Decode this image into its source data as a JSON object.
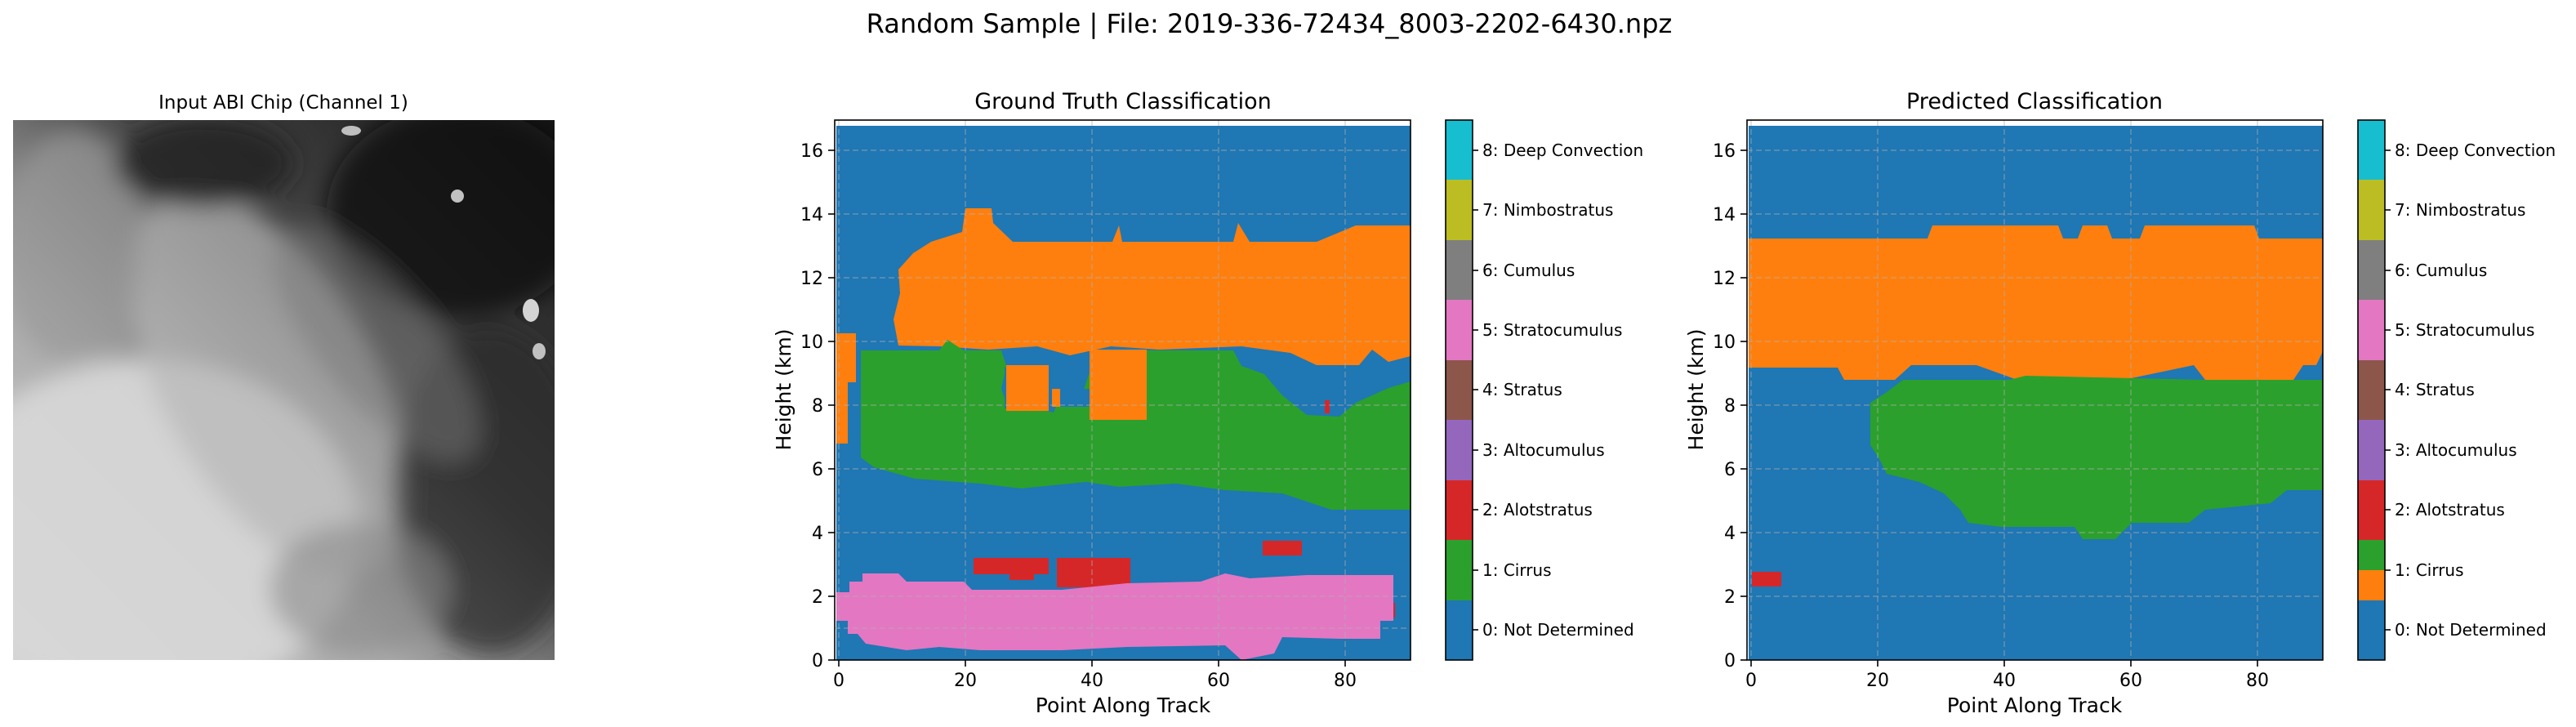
{
  "suptitle": "Random Sample | File: 2019-336-72434_8003-2202-6430.npz",
  "colors": [
    "#1f77b4",
    "#ff7f0e",
    "#2ca02c",
    "#d62728",
    "#9467bd",
    "#8c564b",
    "#e377c2",
    "#7f7f7f",
    "#bcbd22",
    "#17becf"
  ],
  "chart_data": [
    {
      "type": "image",
      "title": "Input ABI Chip (Channel 1)",
      "colormap": "gray",
      "description_values": "grayscale satellite reflectance chip, brighter cloud to the lower-left, darker clear sky to the upper-right"
    },
    {
      "type": "heatmap",
      "title": "Ground Truth Classification",
      "xlabel": "Point Along Track",
      "ylabel": "Height (km)",
      "xlim": [
        0,
        91
      ],
      "ylim": [
        0,
        17
      ],
      "xticks": [
        0,
        20,
        40,
        60,
        80
      ],
      "yticks": [
        0,
        2,
        4,
        6,
        8,
        10,
        12,
        14,
        16
      ],
      "grid": true,
      "colorbar": {
        "labels": [
          "0: Not Determined",
          "1: Cirrus",
          "2: Alotstratus",
          "3: Altocumulus",
          "4: Stratus",
          "5: Stratocumulus",
          "6: Cumulus",
          "7: Nimbostratus",
          "8: Deep Convection"
        ]
      },
      "regions": [
        {
          "class": 1,
          "x": [
            0,
            91
          ],
          "y": [
            9.2,
            14.2
          ],
          "note": "cirrus layer, ragged top near 13-14 km"
        },
        {
          "class": 2,
          "x": [
            3,
            91
          ],
          "y": [
            4.8,
            9.8
          ],
          "note": "altostratus layer"
        },
        {
          "class": 3,
          "x": [
            21,
            47
          ],
          "y": [
            2.3,
            3.3
          ],
          "note": "altocumulus patches"
        },
        {
          "class": 3,
          "x": [
            67,
            73
          ],
          "y": [
            3.2,
            3.7
          ]
        },
        {
          "class": 5,
          "x": [
            0,
            88
          ],
          "y": [
            0,
            2.7
          ],
          "note": "stratocumulus near surface"
        }
      ]
    },
    {
      "type": "heatmap",
      "title": "Predicted Classification",
      "xlabel": "Point Along Track",
      "ylabel": "Height (km)",
      "xlim": [
        0,
        91
      ],
      "ylim": [
        0,
        17
      ],
      "xticks": [
        0,
        20,
        40,
        60,
        80
      ],
      "yticks": [
        0,
        2,
        4,
        6,
        8,
        10,
        12,
        14,
        16
      ],
      "grid": true,
      "colorbar": {
        "labels": [
          "0: Not Determined",
          "1: Cirrus",
          "2: Alotstratus",
          "3: Altocumulus",
          "4: Stratus",
          "5: Stratocumulus",
          "6: Cumulus",
          "7: Nimbostratus",
          "8: Deep Convection"
        ]
      },
      "regions": [
        {
          "class": 1,
          "x": [
            0,
            91
          ],
          "y": [
            8.7,
            13.7
          ],
          "note": "cirrus band"
        },
        {
          "class": 2,
          "x": [
            20,
            91
          ],
          "y": [
            3.2,
            8.7
          ],
          "note": "altostratus wedge"
        },
        {
          "class": 3,
          "x": [
            0,
            5
          ],
          "y": [
            2.2,
            2.7
          ]
        }
      ]
    }
  ]
}
